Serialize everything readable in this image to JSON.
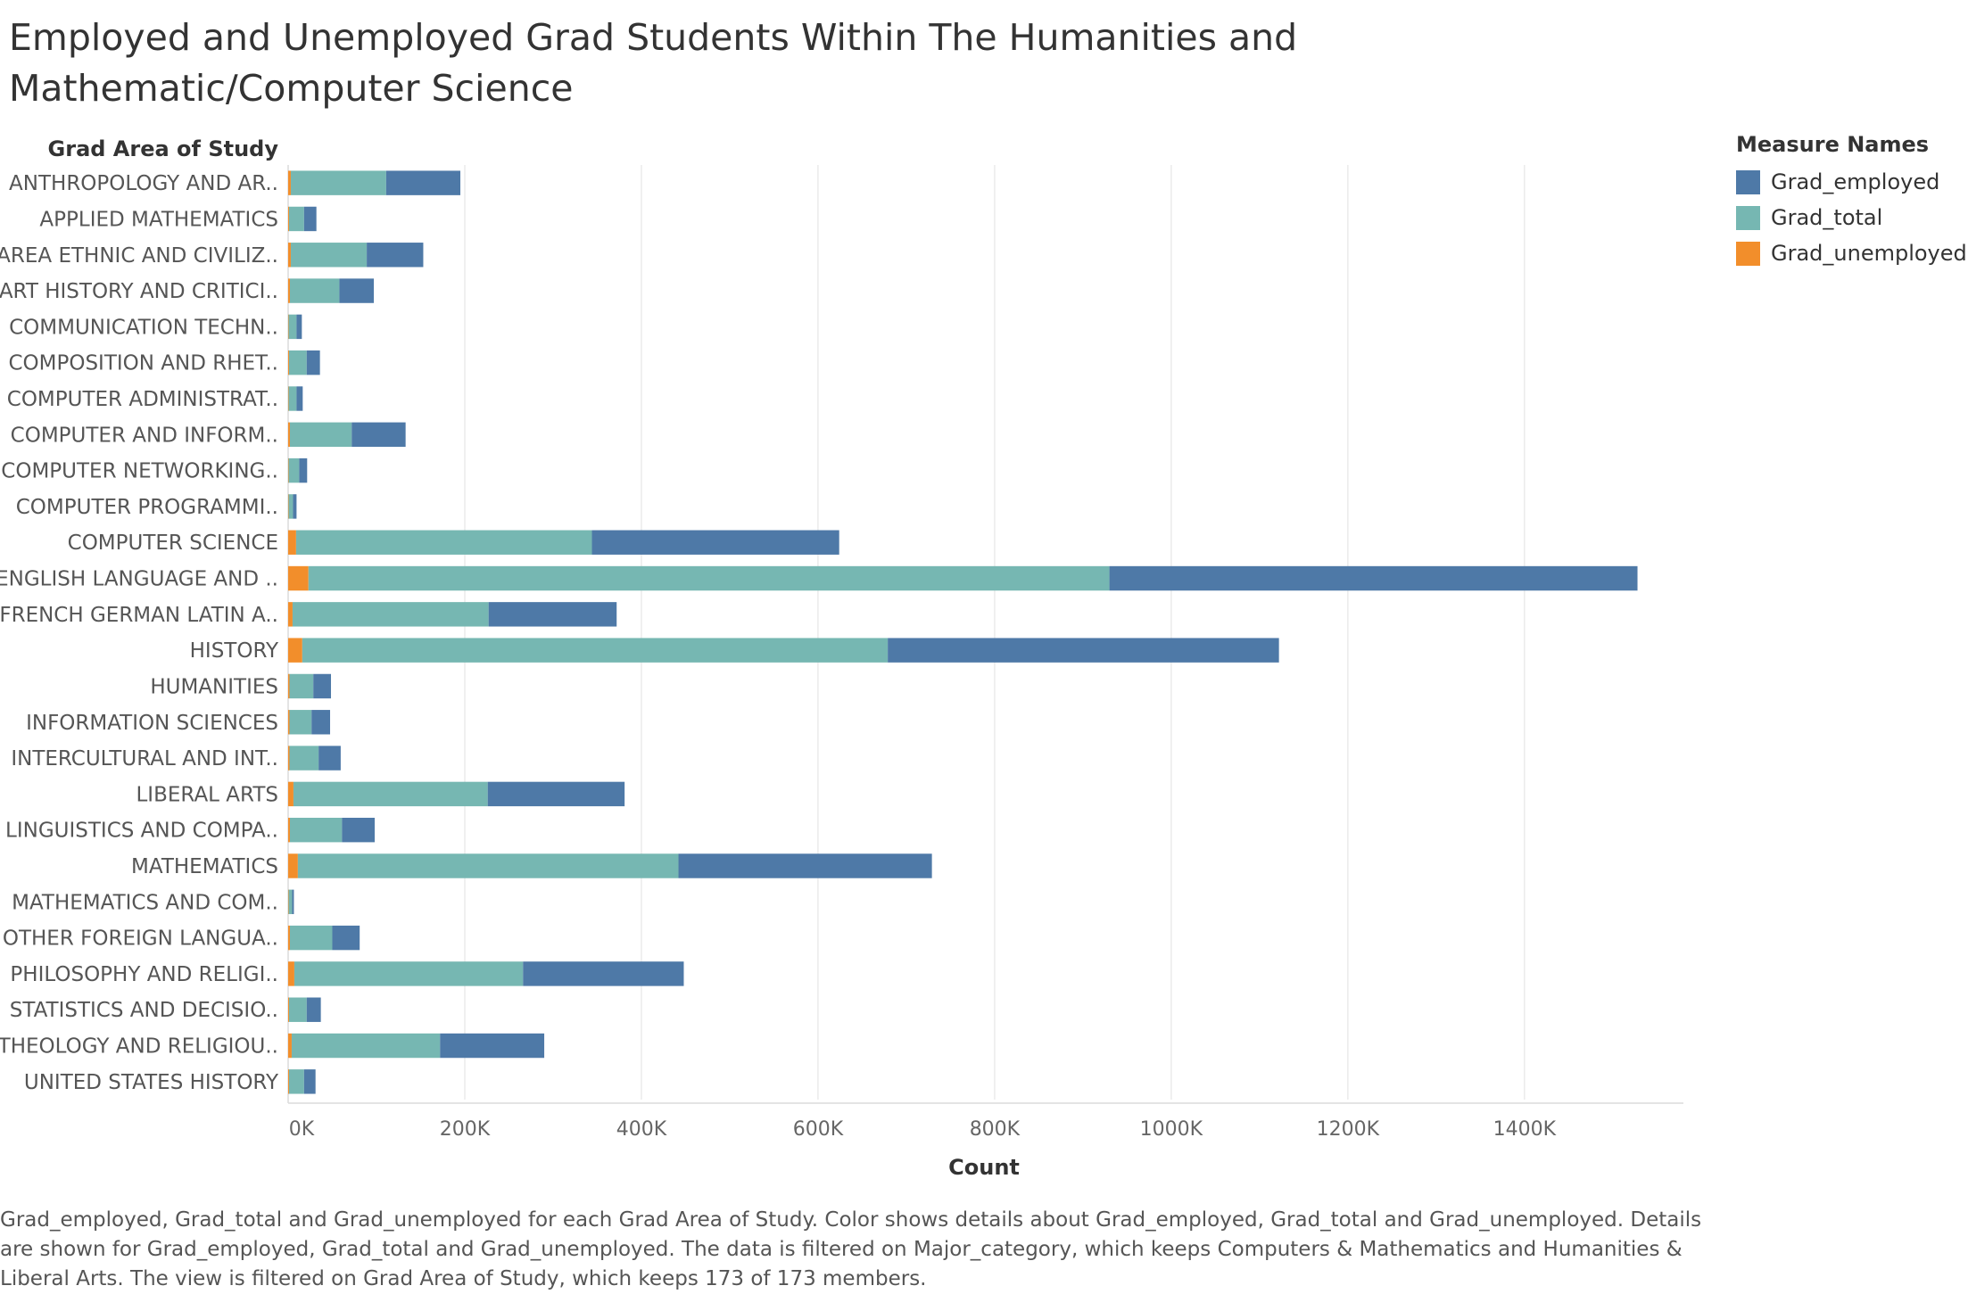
{
  "title": "Employed and Unemployed Grad Students Within The Humanities and Mathematic/Computer Science",
  "caption": "Grad_employed, Grad_total and Grad_unemployed for each Grad Area of Study.  Color shows details about Grad_employed, Grad_total and Grad_unemployed.  Details are shown for Grad_employed, Grad_total and Grad_unemployed. The data is filtered on Major_category, which keeps Computers & Mathematics and Humanities & Liberal Arts. The view is filtered on Grad Area of Study, which keeps 173 of 173 members.",
  "legend": {
    "title": "Measure Names",
    "items": [
      {
        "label": "Grad_employed",
        "color": "#4e79a7"
      },
      {
        "label": "Grad_total",
        "color": "#76b7b2"
      },
      {
        "label": "Grad_unemployed",
        "color": "#f28e2b"
      }
    ]
  },
  "chart_data": {
    "type": "bar",
    "orientation": "horizontal",
    "stacked": true,
    "ylabel": "Grad Area of Study",
    "xlabel": "Count",
    "xlim": [
      0,
      1580000
    ],
    "xticks": [
      0,
      200000,
      400000,
      600000,
      800000,
      1000000,
      1200000,
      1400000
    ],
    "xtick_labels": [
      "0K",
      "200K",
      "400K",
      "600K",
      "800K",
      "1000K",
      "1200K",
      "1400K"
    ],
    "grid": "vertical",
    "legend_position": "top-right",
    "categories": [
      "ANTHROPOLOGY AND AR..",
      "APPLIED MATHEMATICS",
      "AREA ETHNIC AND CIVILIZ..",
      "ART HISTORY AND CRITICI..",
      "COMMUNICATION TECHN..",
      "COMPOSITION AND RHET..",
      "COMPUTER ADMINISTRAT..",
      "COMPUTER AND INFORM..",
      "COMPUTER NETWORKING..",
      "COMPUTER PROGRAMMI..",
      "COMPUTER SCIENCE",
      "ENGLISH LANGUAGE AND ..",
      "FRENCH GERMAN LATIN A..",
      "HISTORY",
      "HUMANITIES",
      "INFORMATION SCIENCES",
      "INTERCULTURAL AND INT..",
      "LIBERAL ARTS",
      "LINGUISTICS AND COMPA..",
      "MATHEMATICS",
      "MATHEMATICS AND COM..",
      "OTHER FOREIGN LANGUA..",
      "PHILOSOPHY AND RELIGI..",
      "STATISTICS AND DECISIO..",
      "THEOLOGY AND RELIGIOU..",
      "UNITED STATES HISTORY"
    ],
    "series": [
      {
        "name": "Grad_unemployed",
        "color": "#f28e2b",
        "values": [
          3000,
          1000,
          3000,
          2000,
          500,
          1000,
          500,
          2000,
          500,
          500,
          9000,
          23000,
          5000,
          16000,
          1500,
          1500,
          1500,
          6000,
          2000,
          11000,
          500,
          2000,
          7000,
          1000,
          4000,
          1000
        ]
      },
      {
        "name": "Grad_total",
        "color": "#76b7b2",
        "values": [
          108000,
          17000,
          86000,
          56000,
          9000,
          20000,
          9000,
          70000,
          12000,
          5000,
          335000,
          907000,
          222000,
          663000,
          27000,
          25000,
          33000,
          220000,
          59000,
          431000,
          4000,
          48000,
          259000,
          20000,
          168000,
          17000
        ]
      },
      {
        "name": "Grad_employed",
        "color": "#4e79a7",
        "values": [
          84000,
          14000,
          64000,
          39000,
          6000,
          15000,
          7000,
          61000,
          9000,
          4000,
          280000,
          598000,
          145000,
          443000,
          20000,
          21000,
          25000,
          155000,
          37000,
          287000,
          2000,
          31000,
          182000,
          16000,
          118000,
          13000
        ]
      }
    ]
  }
}
